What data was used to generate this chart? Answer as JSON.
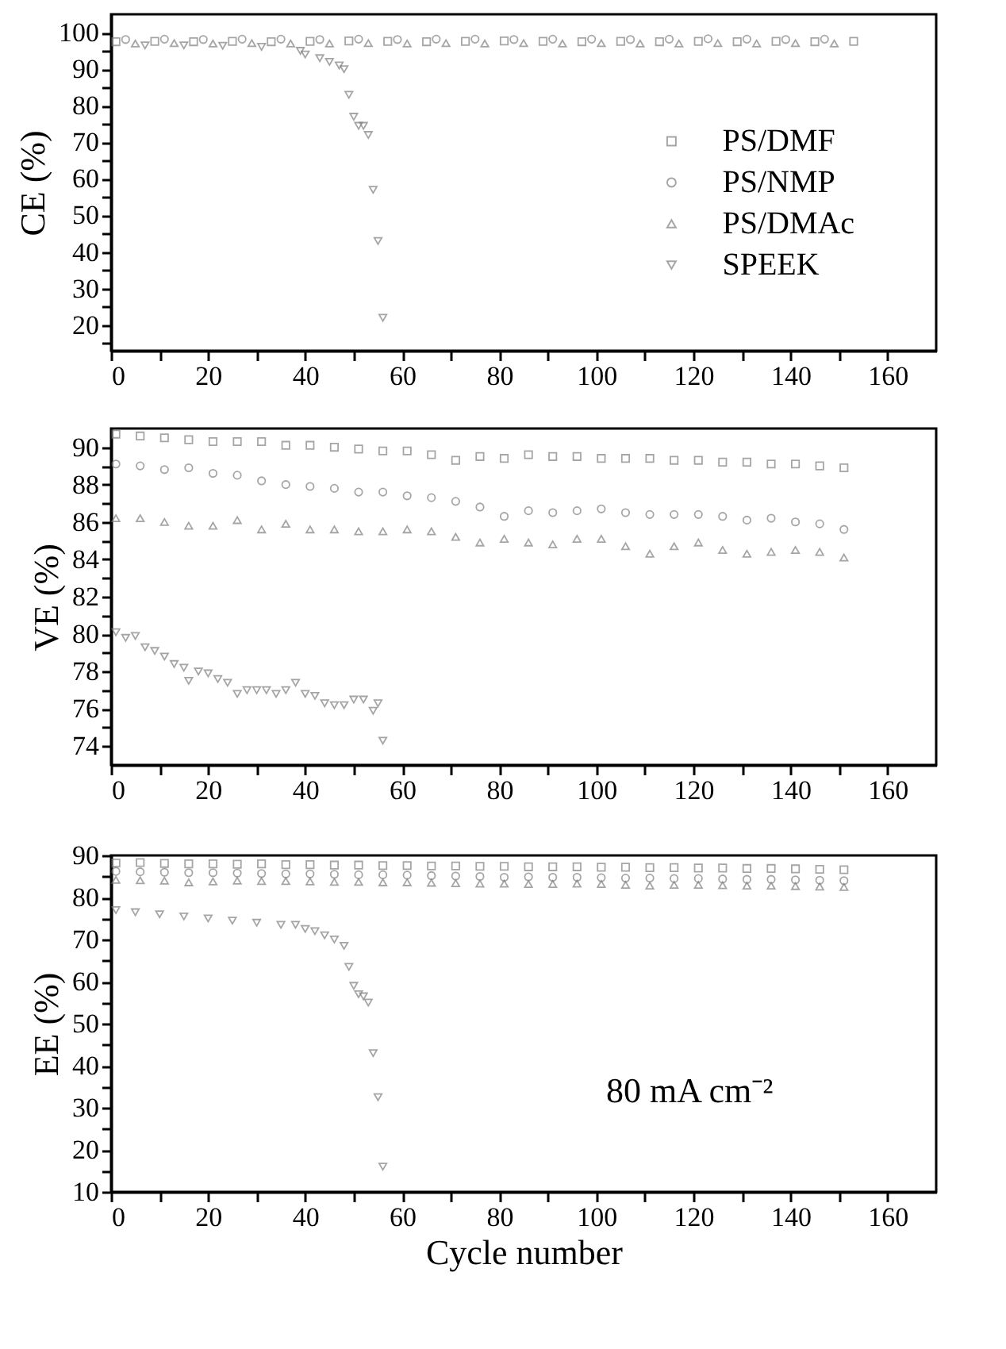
{
  "chart_data": [
    {
      "type": "scatter",
      "ylabel": "CE (%)",
      "legend": "right",
      "grid": false,
      "xlim": [
        0,
        170
      ],
      "ylim": [
        13,
        105
      ],
      "xticks": [
        0,
        {
          "value": 10,
          "label": null
        },
        20,
        {
          "value": 30,
          "label": null
        },
        40,
        {
          "value": 50,
          "label": null
        },
        60,
        {
          "value": 70,
          "label": null
        },
        80,
        {
          "value": 90,
          "label": null
        },
        100,
        {
          "value": 110,
          "label": null
        },
        120,
        {
          "value": 130,
          "label": null
        },
        140,
        {
          "value": 150,
          "label": null
        },
        160
      ],
      "yticks": [
        {
          "value": 15,
          "label": null
        },
        20,
        {
          "value": 25,
          "label": null
        },
        30,
        {
          "value": 35,
          "label": null
        },
        40,
        {
          "value": 45,
          "label": null
        },
        50,
        {
          "value": 55,
          "label": null
        },
        60,
        {
          "value": 65,
          "label": null
        },
        70,
        {
          "value": 75,
          "label": null
        },
        80,
        {
          "value": 85,
          "label": null
        },
        90,
        {
          "value": 95,
          "label": null
        },
        100
      ],
      "series": [
        {
          "name": "PS/DMF",
          "color": "#808080",
          "marker": "square",
          "x": [
            1,
            9,
            17,
            25,
            33,
            41,
            49,
            57,
            65,
            73,
            81,
            89,
            97,
            105,
            113,
            121,
            129,
            137,
            145,
            153
          ],
          "values": [
            97.5,
            97.6,
            97.5,
            97.6,
            97.5,
            97.6,
            97.7,
            97.6,
            97.5,
            97.6,
            97.7,
            97.6,
            97.5,
            97.6,
            97.5,
            97.6,
            97.5,
            97.6,
            97.5,
            97.6
          ]
        },
        {
          "name": "PS/NMP",
          "color": "#808080",
          "marker": "circle",
          "x": [
            3,
            11,
            19,
            27,
            35,
            43,
            51,
            59,
            67,
            75,
            83,
            91,
            99,
            107,
            115,
            123,
            131,
            139,
            147
          ],
          "values": [
            98.1,
            98.2,
            98.1,
            98.2,
            98.2,
            98.1,
            98.2,
            98.1,
            98.2,
            98.2,
            98.1,
            98.2,
            98.2,
            98.1,
            98.2,
            98.3,
            98.2,
            98.1,
            98.2
          ]
        },
        {
          "name": "PS/DMAc",
          "color": "#808080",
          "marker": "triangle",
          "x": [
            5,
            13,
            21,
            29,
            37,
            45,
            53,
            61,
            69,
            77,
            85,
            93,
            101,
            109,
            117,
            125,
            133,
            141,
            149
          ],
          "values": [
            97.0,
            97.1,
            97.0,
            97.1,
            97.0,
            97.0,
            97.1,
            97.0,
            97.1,
            97.0,
            97.1,
            97.0,
            97.1,
            97.0,
            97.0,
            97.1,
            97.0,
            97.1,
            97.0
          ]
        },
        {
          "name": "SPEEK",
          "color": "#808080",
          "marker": "triangle-down",
          "x": [
            7,
            15,
            23,
            31,
            39,
            40,
            43,
            45,
            47,
            48,
            49,
            50,
            51,
            52,
            53,
            54,
            55,
            56
          ],
          "values": [
            96.5,
            96.5,
            96.4,
            96.1,
            95.0,
            94,
            93,
            92,
            91,
            90,
            83,
            77,
            74.5,
            74.5,
            72,
            57,
            43,
            22
          ]
        }
      ]
    },
    {
      "type": "scatter",
      "ylabel": "VE (%)",
      "grid": false,
      "xlim": [
        0,
        170
      ],
      "ylim": [
        73,
        91
      ],
      "xticks": [
        0,
        {
          "value": 10,
          "label": null
        },
        20,
        {
          "value": 30,
          "label": null
        },
        40,
        {
          "value": 50,
          "label": null
        },
        60,
        {
          "value": 70,
          "label": null
        },
        80,
        {
          "value": 90,
          "label": null
        },
        100,
        {
          "value": 110,
          "label": null
        },
        120,
        {
          "value": 130,
          "label": null
        },
        140,
        {
          "value": 150,
          "label": null
        },
        160
      ],
      "yticks": [
        74,
        {
          "value": 75,
          "label": null
        },
        76,
        {
          "value": 77,
          "label": null
        },
        78,
        {
          "value": 79,
          "label": null
        },
        80,
        {
          "value": 81,
          "label": null
        },
        82,
        {
          "value": 83,
          "label": null
        },
        84,
        {
          "value": 85,
          "label": null
        },
        86,
        {
          "value": 87,
          "label": null
        },
        88,
        {
          "value": 89,
          "label": null
        },
        90
      ],
      "x": [
        1,
        6,
        11,
        16,
        21,
        26,
        31,
        36,
        41,
        46,
        51,
        56,
        61,
        66,
        71,
        76,
        81,
        86,
        91,
        96,
        101,
        106,
        111,
        116,
        121,
        126,
        131,
        136,
        141,
        146,
        151
      ],
      "series": [
        {
          "color": "#808080",
          "marker": "square",
          "values": [
            90.7,
            90.6,
            90.5,
            90.4,
            90.3,
            90.3,
            90.3,
            90.1,
            90.1,
            90.0,
            89.9,
            89.8,
            89.8,
            89.6,
            89.3,
            89.5,
            89.4,
            89.6,
            89.5,
            89.5,
            89.4,
            89.4,
            89.4,
            89.3,
            89.3,
            89.2,
            89.2,
            89.1,
            89.1,
            89.0,
            88.9
          ]
        },
        {
          "color": "#808080",
          "marker": "circle",
          "values": [
            89.1,
            89.0,
            88.8,
            88.9,
            88.6,
            88.5,
            88.2,
            88.0,
            87.9,
            87.8,
            87.6,
            87.6,
            87.4,
            87.3,
            87.1,
            86.8,
            86.3,
            86.6,
            86.5,
            86.6,
            86.7,
            86.5,
            86.4,
            86.4,
            86.4,
            86.3,
            86.1,
            86.2,
            86.0,
            85.9,
            85.6
          ]
        },
        {
          "color": "#808080",
          "marker": "triangle",
          "values": [
            86.2,
            86.2,
            86.0,
            85.8,
            85.8,
            86.1,
            85.6,
            85.9,
            85.6,
            85.6,
            85.5,
            85.5,
            85.6,
            85.5,
            85.2,
            84.9,
            85.1,
            84.9,
            84.8,
            85.1,
            85.1,
            84.7,
            84.3,
            84.7,
            84.9,
            84.5,
            84.3,
            84.4,
            84.5,
            84.4,
            84.1
          ]
        },
        {
          "color": "#808080",
          "marker": "triangle-down",
          "x": [
            1,
            3,
            5,
            7,
            9,
            11,
            13,
            15,
            16,
            18,
            20,
            22,
            24,
            26,
            28,
            30,
            32,
            34,
            36,
            38,
            40,
            42,
            44,
            46,
            48,
            50,
            52,
            54,
            55,
            56
          ],
          "values": [
            80.1,
            79.8,
            79.9,
            79.3,
            79.1,
            78.8,
            78.4,
            78.2,
            77.5,
            78.0,
            77.9,
            77.6,
            77.4,
            76.8,
            77.0,
            77.0,
            77.0,
            76.8,
            77.0,
            77.4,
            76.8,
            76.7,
            76.3,
            76.2,
            76.2,
            76.5,
            76.5,
            75.9,
            76.3,
            74.3
          ]
        }
      ]
    },
    {
      "type": "scatter",
      "ylabel": "EE (%)",
      "xlabel": "Cycle number",
      "annotations": [
        "80 mA cm⁻²"
      ],
      "grid": false,
      "xlim": [
        0,
        170
      ],
      "ylim": [
        10,
        90
      ],
      "xticks": [
        0,
        {
          "value": 10,
          "label": null
        },
        20,
        {
          "value": 30,
          "label": null
        },
        40,
        {
          "value": 50,
          "label": null
        },
        60,
        {
          "value": 70,
          "label": null
        },
        80,
        {
          "value": 90,
          "label": null
        },
        100,
        {
          "value": 110,
          "label": null
        },
        120,
        {
          "value": 130,
          "label": null
        },
        140,
        {
          "value": 150,
          "label": null
        },
        160
      ],
      "yticks": [
        10,
        {
          "value": 15,
          "label": null
        },
        20,
        {
          "value": 25,
          "label": null
        },
        30,
        {
          "value": 35,
          "label": null
        },
        40,
        {
          "value": 45,
          "label": null
        },
        50,
        {
          "value": 55,
          "label": null
        },
        60,
        {
          "value": 65,
          "label": null
        },
        70,
        {
          "value": 75,
          "label": null
        },
        80,
        {
          "value": 85,
          "label": null
        },
        90
      ],
      "x": [
        1,
        6,
        11,
        16,
        21,
        26,
        31,
        36,
        41,
        46,
        51,
        56,
        61,
        66,
        71,
        76,
        81,
        86,
        91,
        96,
        101,
        106,
        111,
        116,
        121,
        126,
        131,
        136,
        141,
        146,
        151
      ],
      "series": [
        {
          "color": "#808080",
          "marker": "square",
          "values": [
            88.2,
            88.3,
            88.1,
            88.0,
            88.0,
            87.9,
            88.0,
            87.8,
            87.8,
            87.7,
            87.7,
            87.6,
            87.6,
            87.5,
            87.5,
            87.4,
            87.4,
            87.3,
            87.3,
            87.3,
            87.2,
            87.2,
            87.1,
            87.1,
            87.0,
            87.0,
            86.9,
            86.9,
            86.8,
            86.7,
            86.6
          ]
        },
        {
          "color": "#808080",
          "marker": "circle",
          "values": [
            86.2,
            86.1,
            86.0,
            85.9,
            85.9,
            85.8,
            85.7,
            85.6,
            85.6,
            85.5,
            85.4,
            85.4,
            85.3,
            85.2,
            85.1,
            85.0,
            84.8,
            84.9,
            84.8,
            84.8,
            84.7,
            84.6,
            84.6,
            84.5,
            84.5,
            84.4,
            84.3,
            84.3,
            84.2,
            84.1,
            84.0
          ]
        },
        {
          "color": "#808080",
          "marker": "triangle",
          "values": [
            84.2,
            84.1,
            84.0,
            83.6,
            83.8,
            84.0,
            83.9,
            83.9,
            83.8,
            83.7,
            83.7,
            83.6,
            83.6,
            83.5,
            83.4,
            83.3,
            83.3,
            83.2,
            83.2,
            83.3,
            83.2,
            83.0,
            82.8,
            83.0,
            83.0,
            82.9,
            82.8,
            82.8,
            82.7,
            82.6,
            82.5
          ]
        },
        {
          "color": "#808080",
          "marker": "triangle-down",
          "x": [
            1,
            5,
            10,
            15,
            20,
            25,
            30,
            35,
            38,
            40,
            42,
            44,
            46,
            48,
            49,
            50,
            51,
            52,
            53,
            54,
            55,
            56
          ],
          "values": [
            77,
            76.5,
            76,
            75.5,
            75,
            74.5,
            74,
            73.5,
            73.5,
            72.5,
            72,
            71,
            70,
            68.5,
            63.5,
            59,
            57,
            56.5,
            55,
            43,
            32.5,
            16
          ]
        }
      ]
    }
  ]
}
